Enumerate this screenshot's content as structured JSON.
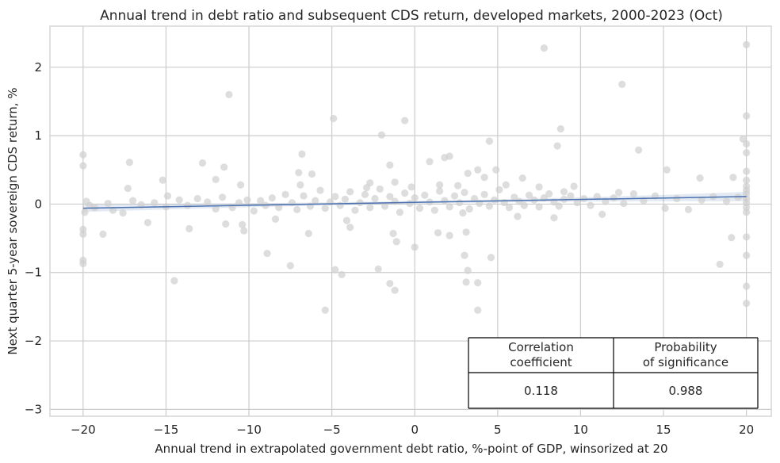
{
  "chart_data": {
    "type": "scatter",
    "title": "Annual trend in debt ratio and subsequent CDS return, developed markets, 2000-2023 (Oct)",
    "xlabel": "Annual trend in extrapolated government debt ratio, %-point of GDP, winsorized at 20",
    "ylabel": "Next quarter 5-year sovereign CDS return, %",
    "xlim": [
      -22,
      21.5
    ],
    "ylim": [
      -3.1,
      2.6
    ],
    "xticks": [
      -20,
      -15,
      -10,
      -5,
      0,
      5,
      10,
      15,
      20
    ],
    "xtick_labels": [
      "−20",
      "−15",
      "−10",
      "−5",
      "0",
      "5",
      "10",
      "15",
      "20"
    ],
    "yticks": [
      -3,
      -2,
      -1,
      0,
      1,
      2
    ],
    "ytick_labels": [
      "−3",
      "−2",
      "−1",
      "0",
      "1",
      "2"
    ],
    "grid": true,
    "colors": {
      "points": "#cfcfcf",
      "regression": "#4c72b0",
      "band": "#4c72b0"
    },
    "regression": {
      "x": [
        -20,
        20
      ],
      "y": [
        -0.06,
        0.11
      ],
      "ci_halfwidth_ends": [
        0.055,
        0.07
      ],
      "ci_halfwidth_center": 0.02
    },
    "points": [
      [
        7.8,
        2.28
      ],
      [
        20,
        2.33
      ],
      [
        12.5,
        1.75
      ],
      [
        -11.2,
        1.6
      ],
      [
        -4.9,
        1.25
      ],
      [
        -0.6,
        1.22
      ],
      [
        -2,
        1.01
      ],
      [
        8.8,
        1.1
      ],
      [
        19.8,
        0.95
      ],
      [
        20,
        1.29
      ],
      [
        20,
        0.88
      ],
      [
        20,
        0.75
      ],
      [
        4.5,
        0.92
      ],
      [
        8.6,
        0.85
      ],
      [
        13.5,
        0.79
      ],
      [
        -6.8,
        0.73
      ],
      [
        2.1,
        0.7
      ],
      [
        1.8,
        0.68
      ],
      [
        -17.2,
        0.61
      ],
      [
        -12.8,
        0.6
      ],
      [
        -11.5,
        0.54
      ],
      [
        -1.5,
        0.57
      ],
      [
        0.9,
        0.62
      ],
      [
        3.8,
        0.5
      ],
      [
        4.9,
        0.5
      ],
      [
        15.2,
        0.5
      ],
      [
        20,
        0.48
      ],
      [
        -20,
        0.72
      ],
      [
        -20,
        0.56
      ],
      [
        -17.3,
        0.23
      ],
      [
        -15.2,
        0.35
      ],
      [
        -12,
        0.36
      ],
      [
        -10.5,
        0.28
      ],
      [
        -7,
        0.46
      ],
      [
        -6.2,
        0.44
      ],
      [
        -2.7,
        0.31
      ],
      [
        -1.2,
        0.32
      ],
      [
        1.5,
        0.28
      ],
      [
        3.2,
        0.45
      ],
      [
        4.2,
        0.39
      ],
      [
        6.5,
        0.38
      ],
      [
        7.5,
        0.25
      ],
      [
        9,
        0.18
      ],
      [
        12.3,
        0.17
      ],
      [
        17.2,
        0.38
      ],
      [
        19.2,
        0.39
      ],
      [
        20,
        0.35
      ],
      [
        20,
        0.26
      ],
      [
        -20,
        -0.37
      ],
      [
        -20,
        -0.44
      ],
      [
        -20,
        -0.87
      ],
      [
        -20,
        -0.82
      ],
      [
        -18.8,
        -0.44
      ],
      [
        -17.6,
        -0.13
      ],
      [
        -16.1,
        -0.27
      ],
      [
        -14.5,
        -1.12
      ],
      [
        -13.6,
        -0.36
      ],
      [
        -11.4,
        -0.29
      ],
      [
        -10.3,
        -0.39
      ],
      [
        -10.4,
        -0.3
      ],
      [
        -8.9,
        -0.72
      ],
      [
        -7.5,
        -0.9
      ],
      [
        -6.4,
        -0.43
      ],
      [
        -5.4,
        -1.55
      ],
      [
        -4.8,
        -0.96
      ],
      [
        -4.4,
        -1.03
      ],
      [
        -3.9,
        -0.34
      ],
      [
        -2.2,
        -0.95
      ],
      [
        -1.5,
        -1.16
      ],
      [
        -1.2,
        -1.26
      ],
      [
        -1.3,
        -0.43
      ],
      [
        -1.1,
        -0.55
      ],
      [
        0,
        -0.63
      ],
      [
        1.4,
        -0.42
      ],
      [
        2.1,
        -0.46
      ],
      [
        2.9,
        -0.13
      ],
      [
        3.1,
        -1.14
      ],
      [
        3.8,
        -1.15
      ],
      [
        3.8,
        -1.55
      ],
      [
        3.2,
        -0.97
      ],
      [
        3,
        -0.75
      ],
      [
        4.6,
        -0.78
      ],
      [
        8.4,
        -0.2
      ],
      [
        3.1,
        -0.41
      ],
      [
        18.4,
        -0.88
      ],
      [
        19.1,
        -0.49
      ],
      [
        20,
        -0.48
      ],
      [
        20,
        -0.75
      ],
      [
        20,
        -1.2
      ],
      [
        20,
        -1.45
      ],
      [
        -19.8,
        0.04
      ],
      [
        -19.6,
        -0.02
      ],
      [
        -19.3,
        -0.05
      ],
      [
        -18.5,
        0.01
      ],
      [
        -18.2,
        -0.09
      ],
      [
        -17,
        0.05
      ],
      [
        -16.5,
        -0.01
      ],
      [
        -15.7,
        0.02
      ],
      [
        -15,
        -0.04
      ],
      [
        -14.2,
        0.06
      ],
      [
        -13.7,
        -0.02
      ],
      [
        -13.1,
        0.08
      ],
      [
        -12.5,
        0.03
      ],
      [
        -12,
        -0.07
      ],
      [
        -11.6,
        0.1
      ],
      [
        -11,
        -0.05
      ],
      [
        -10.6,
        0.02
      ],
      [
        -10.1,
        0.06
      ],
      [
        -9.7,
        -0.1
      ],
      [
        -9.3,
        0.05
      ],
      [
        -9,
        -0.02
      ],
      [
        -8.6,
        0.09
      ],
      [
        -8.2,
        -0.05
      ],
      [
        -7.8,
        0.14
      ],
      [
        -7.4,
        0.02
      ],
      [
        -7.1,
        -0.08
      ],
      [
        -6.7,
        0.12
      ],
      [
        -6.3,
        -0.03
      ],
      [
        -6,
        0.05
      ],
      [
        -5.7,
        0.2
      ],
      [
        -5.4,
        -0.06
      ],
      [
        -5.1,
        0.03
      ],
      [
        -4.8,
        0.11
      ],
      [
        -4.5,
        -0.02
      ],
      [
        -4.2,
        0.07
      ],
      [
        -3.9,
        0.18
      ],
      [
        -3.6,
        -0.09
      ],
      [
        -3.3,
        0.02
      ],
      [
        -3,
        0.14
      ],
      [
        -2.7,
        -0.05
      ],
      [
        -2.4,
        0.08
      ],
      [
        -2.1,
        0.22
      ],
      [
        -1.8,
        -0.03
      ],
      [
        -1.5,
        0.11
      ],
      [
        -1.2,
        0.04
      ],
      [
        -0.9,
        -0.12
      ],
      [
        -0.6,
        0.16
      ],
      [
        -0.3,
        0.01
      ],
      [
        0,
        0.09
      ],
      [
        0.3,
        -0.06
      ],
      [
        0.6,
        0.13
      ],
      [
        0.9,
        0.03
      ],
      [
        1.2,
        -0.09
      ],
      [
        1.5,
        0.19
      ],
      [
        1.8,
        0.05
      ],
      [
        2.1,
        -0.04
      ],
      [
        2.4,
        0.12
      ],
      [
        2.7,
        0.02
      ],
      [
        3,
        0.17
      ],
      [
        3.3,
        -0.07
      ],
      [
        3.6,
        0.08
      ],
      [
        3.9,
        0.01
      ],
      [
        4.2,
        0.14
      ],
      [
        4.5,
        -0.03
      ],
      [
        4.8,
        0.06
      ],
      [
        5.1,
        0.21
      ],
      [
        5.4,
        0.02
      ],
      [
        5.7,
        -0.05
      ],
      [
        6,
        0.1
      ],
      [
        6.3,
        0.04
      ],
      [
        6.6,
        -0.02
      ],
      [
        6.9,
        0.13
      ],
      [
        7.2,
        0.06
      ],
      [
        7.5,
        -0.04
      ],
      [
        7.8,
        0.09
      ],
      [
        8.1,
        0.15
      ],
      [
        8.4,
        0.03
      ],
      [
        8.7,
        -0.03
      ],
      [
        9,
        0.07
      ],
      [
        9.4,
        0.12
      ],
      [
        9.8,
        0.02
      ],
      [
        10.2,
        0.08
      ],
      [
        10.6,
        -0.02
      ],
      [
        11,
        0.11
      ],
      [
        11.5,
        0.04
      ],
      [
        12,
        0.09
      ],
      [
        12.6,
        0.01
      ],
      [
        13.2,
        0.15
      ],
      [
        13.8,
        0.05
      ],
      [
        14.5,
        0.12
      ],
      [
        15.1,
        -0.06
      ],
      [
        15.8,
        0.08
      ],
      [
        16.5,
        -0.08
      ],
      [
        17.3,
        0.06
      ],
      [
        18,
        0.11
      ],
      [
        18.8,
        0.04
      ],
      [
        19.5,
        0.1
      ],
      [
        20,
        0.2
      ],
      [
        20,
        0.15
      ],
      [
        20,
        0.08
      ],
      [
        20,
        0.02
      ],
      [
        20,
        -0.05
      ],
      [
        20,
        -0.12
      ],
      [
        -19.9,
        -0.12
      ],
      [
        -14.9,
        0.12
      ],
      [
        -8.4,
        -0.22
      ],
      [
        -6.9,
        0.28
      ],
      [
        -4.1,
        -0.24
      ],
      [
        -2.9,
        0.24
      ],
      [
        -0.2,
        0.25
      ],
      [
        2.6,
        0.27
      ],
      [
        5.5,
        0.28
      ],
      [
        6.2,
        -0.18
      ],
      [
        9.6,
        0.26
      ],
      [
        11.3,
        -0.15
      ]
    ],
    "stats_table": {
      "headers": [
        "Correlation\ncoefficient",
        "Probability\nof significance"
      ],
      "values": [
        "0.118",
        "0.988"
      ]
    }
  }
}
